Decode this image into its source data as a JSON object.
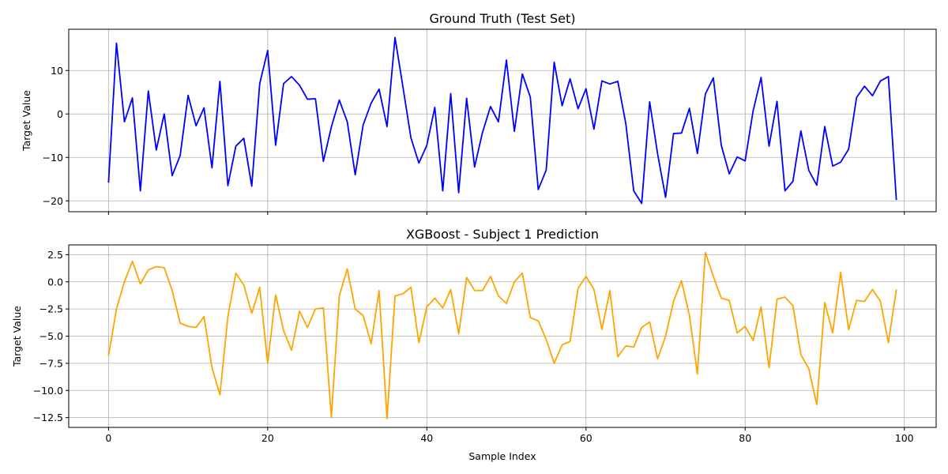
{
  "chart_data": [
    {
      "type": "line",
      "title": "Ground Truth (Test Set)",
      "xlabel": "",
      "ylabel": "Target Value",
      "xlim": [
        -5,
        104
      ],
      "ylim": [
        -22.5,
        19.5
      ],
      "xticks": [
        0,
        20,
        40,
        60,
        80,
        100
      ],
      "yticks": [
        -20,
        -10,
        0,
        10
      ],
      "ytick_labels": [
        "−20",
        "−10",
        "0",
        "10"
      ],
      "grid": true,
      "color": "#0000ff",
      "x_start": 0,
      "series": [
        {
          "values": [
            -15.8,
            16.3,
            -1.8,
            3.7,
            -17.7,
            5.3,
            -8.3,
            0,
            -14.2,
            -9.6,
            4.3,
            -2.7,
            1.4,
            -12.4,
            7.5,
            -16.5,
            -7.4,
            -5.6,
            -16.6,
            7.0,
            14.6,
            -7.2,
            7.0,
            8.6,
            6.6,
            3.4,
            3.5,
            -10.9,
            -3.0,
            3.2,
            -1.8,
            -14.0,
            -2.5,
            2.5,
            5.7,
            -2.9,
            17.6,
            6.2,
            -5.5,
            -11.3,
            -7.2,
            1.5,
            -17.7,
            4.7,
            -18.1,
            3.6,
            -12.2,
            -4.2,
            1.7,
            -1.8,
            12.4,
            -4.0,
            9.2,
            3.9,
            -17.4,
            -12.9,
            11.9,
            1.9,
            8.1,
            1.2,
            5.8,
            -3.5,
            7.6,
            6.9,
            7.5,
            -2.2,
            -17.7,
            -20.6,
            2.8,
            -9.2,
            -19.2,
            -4.5,
            -4.4,
            1.3,
            -9.1,
            4.6,
            8.3,
            -7.2,
            -13.8,
            -9.9,
            -10.8,
            0.7,
            8.4,
            -7.4,
            2.9,
            -17.7,
            -15.5,
            -3.9,
            -13.0,
            -16.4,
            -2.9,
            -12.0,
            -11.1,
            -8.1,
            3.8,
            6.4,
            4.2,
            7.6,
            8.6,
            -19.8
          ]
        }
      ]
    },
    {
      "type": "line",
      "title": "XGBoost - Subject 1 Prediction",
      "xlabel": "Sample Index",
      "ylabel": "Target Value",
      "xlim": [
        -5,
        104
      ],
      "ylim": [
        -13.4,
        3.4
      ],
      "xticks": [
        0,
        20,
        40,
        60,
        80,
        100
      ],
      "xtick_labels": [
        "0",
        "20",
        "40",
        "60",
        "80",
        "100"
      ],
      "yticks": [
        2.5,
        0,
        -2.5,
        -5,
        -7.5,
        -10,
        -12.5
      ],
      "ytick_labels": [
        "2.5",
        "0.0",
        "−2.5",
        "−5.0",
        "−7.5",
        "−10.0",
        "−12.5"
      ],
      "grid": true,
      "color": "#ffa500",
      "x_start": 0,
      "series": [
        {
          "values": [
            -6.8,
            -2.5,
            0,
            1.9,
            -0.2,
            1.1,
            1.4,
            1.3,
            -0.8,
            -3.8,
            -4.1,
            -4.2,
            -3.2,
            -7.9,
            -10.4,
            -3.2,
            0.8,
            -0.3,
            -2.9,
            -0.5,
            -7.5,
            -1.2,
            -4.5,
            -6.3,
            -2.7,
            -4.2,
            -2.5,
            -2.4,
            -12.5,
            -1.3,
            1.2,
            -2.5,
            -3.1,
            -5.7,
            -0.8,
            -12.6,
            -1.3,
            -1.1,
            -0.5,
            -5.6,
            -2.3,
            -1.5,
            -2.4,
            -0.7,
            -4.8,
            0.4,
            -0.8,
            -0.8,
            0.5,
            -1.3,
            -2.0,
            0.0,
            0.8,
            -3.3,
            -3.6,
            -5.3,
            -7.5,
            -5.8,
            -5.5,
            -0.6,
            0.5,
            -0.7,
            -4.4,
            -0.8,
            -6.9,
            -5.9,
            -6.0,
            -4.2,
            -3.7,
            -7.1,
            -5.0,
            -1.8,
            0.1,
            -3.1,
            -8.5,
            2.7,
            0.5,
            -1.5,
            -1.7,
            -4.7,
            -4.1,
            -5.4,
            -2.3,
            -7.9,
            -1.6,
            -1.4,
            -2.2,
            -6.7,
            -8.0,
            -11.3,
            -1.9,
            -4.7,
            0.9,
            -4.4,
            -1.7,
            -1.8,
            -0.7,
            -1.8,
            -5.6,
            -0.7
          ]
        }
      ]
    }
  ]
}
